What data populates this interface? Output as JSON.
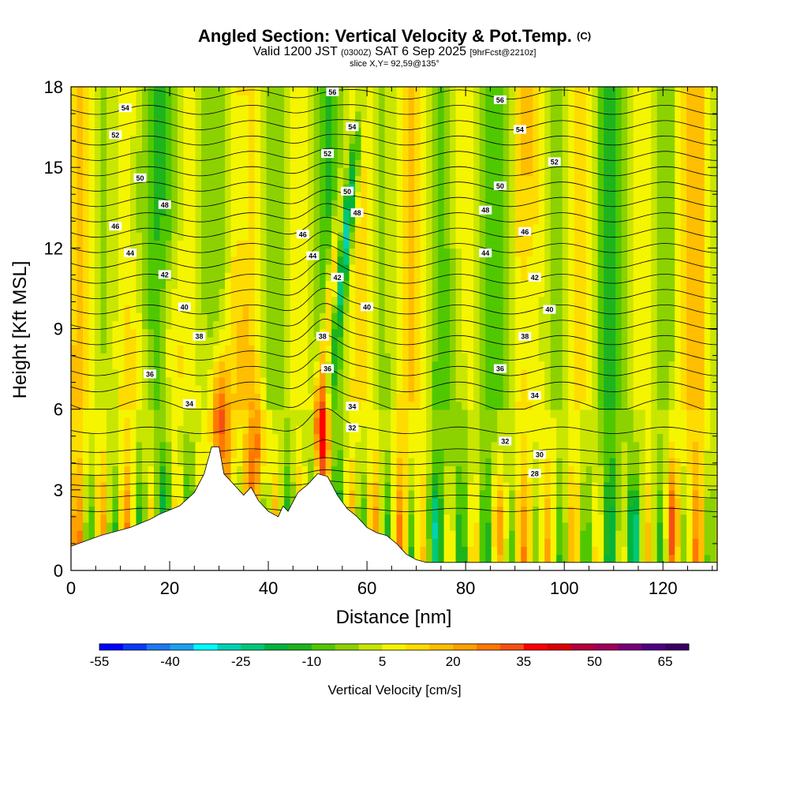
{
  "chart_data": {
    "type": "heatmap",
    "title": "Angled Section: Vertical Velocity & Pot.Temp.",
    "title_unit": "(C)",
    "subtitle": {
      "valid_prefix": "Valid 1200 JST",
      "utc": "(0300Z)",
      "date": "SAT 6 Sep 2025",
      "forecast": "[9hrFcst@2210z]"
    },
    "slice_info": "slice X,Y= 92,59@135°",
    "xlabel": "Distance [nm]",
    "ylabel": "Height [Kft MSL]",
    "xlim": [
      0,
      131
    ],
    "ylim": [
      0,
      18
    ],
    "x_ticks": [
      "0",
      "20",
      "40",
      "60",
      "80",
      "100",
      "120"
    ],
    "y_ticks": [
      "0",
      "3",
      "6",
      "9",
      "12",
      "15",
      "18"
    ],
    "colorbar": {
      "label": "Vertical Velocity [cm/s]",
      "min": -55,
      "max": 70,
      "step": 5,
      "tick_labels": [
        "-55",
        "-40",
        "-25",
        "-10",
        "5",
        "20",
        "35",
        "50",
        "65"
      ],
      "colors": [
        "#0000ff",
        "#0a3cf5",
        "#1e78f0",
        "#1ea0f0",
        "#00ffff",
        "#00d2b4",
        "#00c878",
        "#00b43c",
        "#1eb41e",
        "#50c800",
        "#8cd200",
        "#c8e600",
        "#f5f500",
        "#ffdc00",
        "#ffbe00",
        "#ffa000",
        "#ff7800",
        "#f55014",
        "#ff0000",
        "#dc0000",
        "#b4003c",
        "#a0005a",
        "#780078",
        "#500082",
        "#3c0064"
      ]
    },
    "theta_contour_labels": [
      {
        "text": "56",
        "x": 53,
        "y": 17.8
      },
      {
        "text": "54",
        "x": 57,
        "y": 16.5
      },
      {
        "text": "52",
        "x": 52,
        "y": 15.5
      },
      {
        "text": "50",
        "x": 56,
        "y": 14.1
      },
      {
        "text": "48",
        "x": 58,
        "y": 13.3
      },
      {
        "text": "46",
        "x": 47,
        "y": 12.5
      },
      {
        "text": "44",
        "x": 49,
        "y": 11.7
      },
      {
        "text": "42",
        "x": 54,
        "y": 10.9
      },
      {
        "text": "40",
        "x": 60,
        "y": 9.8
      },
      {
        "text": "38",
        "x": 51,
        "y": 8.7
      },
      {
        "text": "36",
        "x": 52,
        "y": 7.5
      },
      {
        "text": "34",
        "x": 57,
        "y": 6.1
      },
      {
        "text": "32",
        "x": 57,
        "y": 5.3
      },
      {
        "text": "54",
        "x": 11,
        "y": 17.2
      },
      {
        "text": "52",
        "x": 9,
        "y": 16.2
      },
      {
        "text": "50",
        "x": 14,
        "y": 14.6
      },
      {
        "text": "48",
        "x": 19,
        "y": 13.6
      },
      {
        "text": "46",
        "x": 9,
        "y": 12.8
      },
      {
        "text": "44",
        "x": 12,
        "y": 11.8
      },
      {
        "text": "42",
        "x": 19,
        "y": 11.0
      },
      {
        "text": "40",
        "x": 23,
        "y": 9.8
      },
      {
        "text": "38",
        "x": 26,
        "y": 8.7
      },
      {
        "text": "36",
        "x": 16,
        "y": 7.3
      },
      {
        "text": "34",
        "x": 24,
        "y": 6.2
      },
      {
        "text": "56",
        "x": 87,
        "y": 17.5
      },
      {
        "text": "54",
        "x": 91,
        "y": 16.4
      },
      {
        "text": "52",
        "x": 98,
        "y": 15.2
      },
      {
        "text": "50",
        "x": 87,
        "y": 14.3
      },
      {
        "text": "48",
        "x": 84,
        "y": 13.4
      },
      {
        "text": "46",
        "x": 92,
        "y": 12.6
      },
      {
        "text": "44",
        "x": 84,
        "y": 11.8
      },
      {
        "text": "42",
        "x": 94,
        "y": 10.9
      },
      {
        "text": "40",
        "x": 97,
        "y": 9.7
      },
      {
        "text": "38",
        "x": 92,
        "y": 8.7
      },
      {
        "text": "36",
        "x": 87,
        "y": 7.5
      },
      {
        "text": "34",
        "x": 94,
        "y": 6.5
      },
      {
        "text": "32",
        "x": 88,
        "y": 4.8
      },
      {
        "text": "30",
        "x": 95,
        "y": 4.3
      },
      {
        "text": "28",
        "x": 94,
        "y": 3.6
      }
    ]
  }
}
